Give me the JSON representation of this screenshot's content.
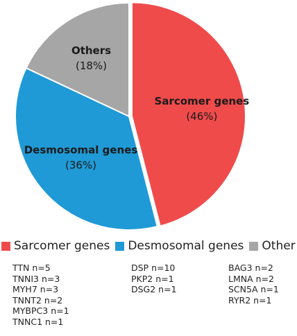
{
  "chart_data": {
    "type": "pie",
    "slices": [
      {
        "label": "Sarcomer genes",
        "pct_label": "(46%)",
        "value": 46,
        "color": "#f04b4b",
        "label_color": "#1a1a1a"
      },
      {
        "label": "Desmosomal genes",
        "pct_label": "(36%)",
        "value": 36,
        "color": "#1f9ad6",
        "label_color": "#1a1a1a"
      },
      {
        "label": "Others",
        "pct_label": "(18%)",
        "value": 18,
        "color": "#a6a6a6",
        "label_color": "#1a1a1a"
      }
    ],
    "legend": [
      {
        "label": "Sarcomer genes",
        "color": "#f04b4b"
      },
      {
        "label": "Desmosomal genes",
        "color": "#1f9ad6"
      },
      {
        "label": "Other",
        "color": "#a6a6a6"
      }
    ],
    "gene_lists": [
      [
        "TTN n=5",
        "TNNI3 n=3",
        "MYH7 n=3",
        "TNNT2 n=2",
        "MYBPC3 n=1",
        "TNNC1 n=1"
      ],
      [
        "DSP n=10",
        "PKP2 n=1",
        "DSG2 n=1"
      ],
      [
        "BAG3 n=2",
        "LMNA n=2",
        "SCN5A n=1",
        "RYR2 n=1"
      ]
    ]
  }
}
